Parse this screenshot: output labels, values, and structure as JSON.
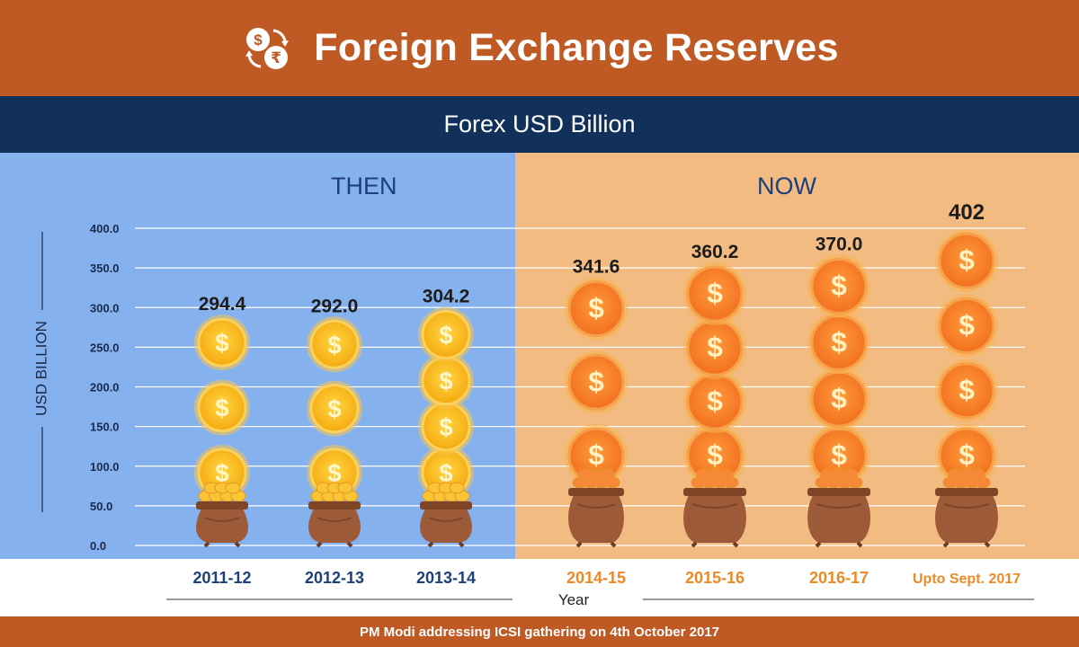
{
  "header": {
    "title": "Foreign Exchange Reserves",
    "icon": "currency-exchange-icon"
  },
  "subheader": {
    "title": "Forex USD Billion"
  },
  "sections": {
    "then": "THEN",
    "now": "NOW"
  },
  "footer": {
    "text": "PM Modi addressing ICSI gathering on 4th October 2017"
  },
  "colors": {
    "header_bg": "#c05a25",
    "subheader_bg": "#12315a",
    "then_bg": "#85b1ef",
    "now_bg": "#f2bb82",
    "then_year": "#1d3f7a",
    "now_year": "#ec8a26"
  },
  "chart_data": {
    "type": "bar",
    "title": "Forex USD Billion",
    "xlabel": "Year",
    "ylabel": "USD BILLION",
    "ylim": [
      0,
      400
    ],
    "yticks": [
      "0.0",
      "50.0",
      "100.0",
      "150.0",
      "200.0",
      "250.0",
      "300.0",
      "350.0",
      "400.0"
    ],
    "grid": true,
    "categories": [
      "2011-12",
      "2012-13",
      "2013-14",
      "2014-15",
      "2015-16",
      "2016-17",
      "Upto Sept. 2017"
    ],
    "values": [
      294.4,
      292.0,
      304.2,
      341.6,
      360.2,
      370.0,
      402
    ],
    "labels": [
      "294.4",
      "292.0",
      "304.2",
      "341.6",
      "360.2",
      "370.0",
      "402"
    ],
    "groups": [
      "then",
      "then",
      "then",
      "now",
      "now",
      "now",
      "now"
    ]
  }
}
